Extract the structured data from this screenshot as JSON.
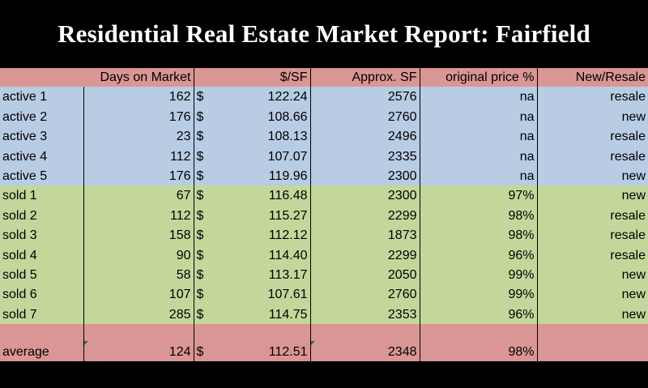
{
  "title": "Residential Real Estate Market Report:  Fairfield",
  "headers": [
    "",
    "Days on Market",
    "$/SF",
    "Approx. SF",
    "original price %",
    "New/Resale"
  ],
  "currency_symbol": "$",
  "rows": [
    {
      "label": "active 1",
      "days": "162",
      "price": "122.24",
      "sf": "2576",
      "pct": "na",
      "type": "resale",
      "group": "active"
    },
    {
      "label": "active 2",
      "days": "176",
      "price": "108.66",
      "sf": "2760",
      "pct": "na",
      "type": "new",
      "group": "active"
    },
    {
      "label": "active 3",
      "days": "23",
      "price": "108.13",
      "sf": "2496",
      "pct": "na",
      "type": "resale",
      "group": "active"
    },
    {
      "label": "active 4",
      "days": "112",
      "price": "107.07",
      "sf": "2335",
      "pct": "na",
      "type": "resale",
      "group": "active"
    },
    {
      "label": "active 5",
      "days": "176",
      "price": "119.96",
      "sf": "2300",
      "pct": "na",
      "type": "new",
      "group": "active"
    },
    {
      "label": "sold 1",
      "days": "67",
      "price": "116.48",
      "sf": "2300",
      "pct": "97%",
      "type": "new",
      "group": "sold"
    },
    {
      "label": "sold 2",
      "days": "112",
      "price": "115.27",
      "sf": "2299",
      "pct": "98%",
      "type": "resale",
      "group": "sold"
    },
    {
      "label": "sold 3",
      "days": "158",
      "price": "112.12",
      "sf": "1873",
      "pct": "98%",
      "type": "resale",
      "group": "sold"
    },
    {
      "label": "sold 4",
      "days": "90",
      "price": "114.40",
      "sf": "2299",
      "pct": "96%",
      "type": "resale",
      "group": "sold"
    },
    {
      "label": "sold 5",
      "days": "58",
      "price": "113.17",
      "sf": "2050",
      "pct": "99%",
      "type": "new",
      "group": "sold"
    },
    {
      "label": "sold 6",
      "days": "107",
      "price": "107.61",
      "sf": "2760",
      "pct": "99%",
      "type": "new",
      "group": "sold"
    },
    {
      "label": "sold 7",
      "days": "285",
      "price": "114.75",
      "sf": "2353",
      "pct": "96%",
      "type": "new",
      "group": "sold"
    }
  ],
  "average": {
    "label": "average",
    "days": "124",
    "price": "112.51",
    "sf": "2348",
    "pct": "98%",
    "type": ""
  },
  "colors": {
    "header": "#da9694",
    "active": "#b8cce4",
    "sold": "#c4d79b",
    "title_bg": "#000000",
    "title_text": "#ffffff"
  }
}
